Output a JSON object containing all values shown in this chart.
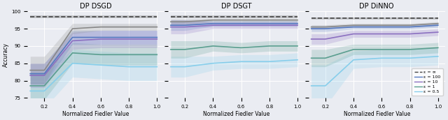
{
  "titles": [
    "DP DSGD",
    "DP DSGT",
    "DP DiNNO"
  ],
  "xlabel": "Normalized Fiedler Value",
  "ylabel": "Accuracy",
  "ylim": [
    75,
    100
  ],
  "y_ticks": [
    75,
    80,
    85,
    90,
    95,
    100
  ],
  "x_ticks": [
    0.2,
    0.4,
    0.6,
    0.8,
    1.0
  ],
  "background_color": "#eaecf2",
  "colors": {
    "inf": "#888888",
    "e100": "#5579c0",
    "e10": "#8b70c0",
    "e1": "#5a9e8f",
    "e05": "#87ceeb"
  },
  "dsgd": {
    "inf_mean": [
      98.5,
      98.5,
      98.5,
      98.5,
      98.5,
      98.5
    ],
    "inf_std": [
      0.4,
      0.4,
      0.4,
      0.4,
      0.4,
      0.4
    ],
    "gray_mean": [
      83.0,
      83.0,
      95.0,
      95.5,
      95.5,
      95.5
    ],
    "gray_std": [
      4.0,
      4.0,
      1.5,
      1.0,
      1.0,
      1.0
    ],
    "e100_mean": [
      82.0,
      82.0,
      92.5,
      92.5,
      92.5,
      92.5
    ],
    "e100_std": [
      3.0,
      3.0,
      2.0,
      2.0,
      2.0,
      2.0
    ],
    "e10_mean": [
      81.5,
      81.5,
      91.5,
      92.0,
      92.0,
      92.0
    ],
    "e10_std": [
      3.5,
      3.5,
      2.5,
      2.5,
      2.5,
      2.5
    ],
    "e1_mean": [
      78.5,
      78.5,
      88.0,
      87.5,
      87.5,
      87.5
    ],
    "e1_std": [
      4.0,
      4.0,
      3.0,
      3.0,
      3.0,
      3.0
    ],
    "e05_mean": [
      77.0,
      77.0,
      85.0,
      84.5,
      84.0,
      84.0
    ],
    "e05_std": [
      5.0,
      5.0,
      4.0,
      4.0,
      4.0,
      4.0
    ]
  },
  "dsgt": {
    "inf_mean": [
      98.5,
      98.5,
      98.5,
      98.5,
      98.5,
      98.5
    ],
    "inf_std": [
      0.4,
      0.4,
      0.4,
      0.4,
      0.4,
      0.4
    ],
    "gray_mean": [
      97.0,
      97.0,
      97.5,
      97.5,
      97.5,
      97.5
    ],
    "gray_std": [
      0.8,
      0.8,
      0.5,
      0.5,
      0.5,
      0.5
    ],
    "e100_mean": [
      96.0,
      96.0,
      96.5,
      96.5,
      96.5,
      96.5
    ],
    "e100_std": [
      1.5,
      1.5,
      0.8,
      0.8,
      0.8,
      0.8
    ],
    "e10_mean": [
      95.5,
      95.5,
      96.0,
      96.0,
      96.0,
      96.0
    ],
    "e10_std": [
      2.0,
      2.0,
      1.0,
      1.0,
      1.0,
      1.0
    ],
    "e1_mean": [
      89.0,
      89.0,
      90.0,
      89.5,
      90.0,
      90.0
    ],
    "e1_std": [
      2.5,
      2.5,
      1.5,
      1.5,
      1.5,
      1.5
    ],
    "e05_mean": [
      84.0,
      84.0,
      85.0,
      85.5,
      85.5,
      86.0
    ],
    "e05_std": [
      3.0,
      3.0,
      2.0,
      2.0,
      2.0,
      2.0
    ]
  },
  "dinno": {
    "inf_mean": [
      98.0,
      98.0,
      98.0,
      98.0,
      98.0,
      98.0
    ],
    "inf_std": [
      0.3,
      0.3,
      0.3,
      0.3,
      0.3,
      0.3
    ],
    "gray_mean": [
      95.5,
      95.5,
      96.0,
      96.0,
      96.0,
      96.5
    ],
    "gray_std": [
      0.6,
      0.6,
      0.5,
      0.5,
      0.5,
      0.5
    ],
    "e100_mean": [
      95.0,
      95.0,
      95.5,
      95.5,
      95.5,
      96.0
    ],
    "e100_std": [
      0.8,
      0.8,
      0.6,
      0.6,
      0.6,
      0.6
    ],
    "e10_mean": [
      92.0,
      92.0,
      93.5,
      93.5,
      93.5,
      94.0
    ],
    "e10_std": [
      1.5,
      1.5,
      1.0,
      1.0,
      1.0,
      1.0
    ],
    "e1_mean": [
      86.5,
      86.5,
      89.0,
      89.0,
      89.0,
      89.5
    ],
    "e1_std": [
      2.5,
      2.5,
      1.5,
      1.5,
      1.5,
      1.5
    ],
    "e05_mean": [
      78.5,
      78.5,
      86.0,
      86.5,
      86.5,
      87.0
    ],
    "e05_std": [
      6.0,
      6.0,
      2.5,
      2.5,
      2.5,
      2.5
    ]
  }
}
